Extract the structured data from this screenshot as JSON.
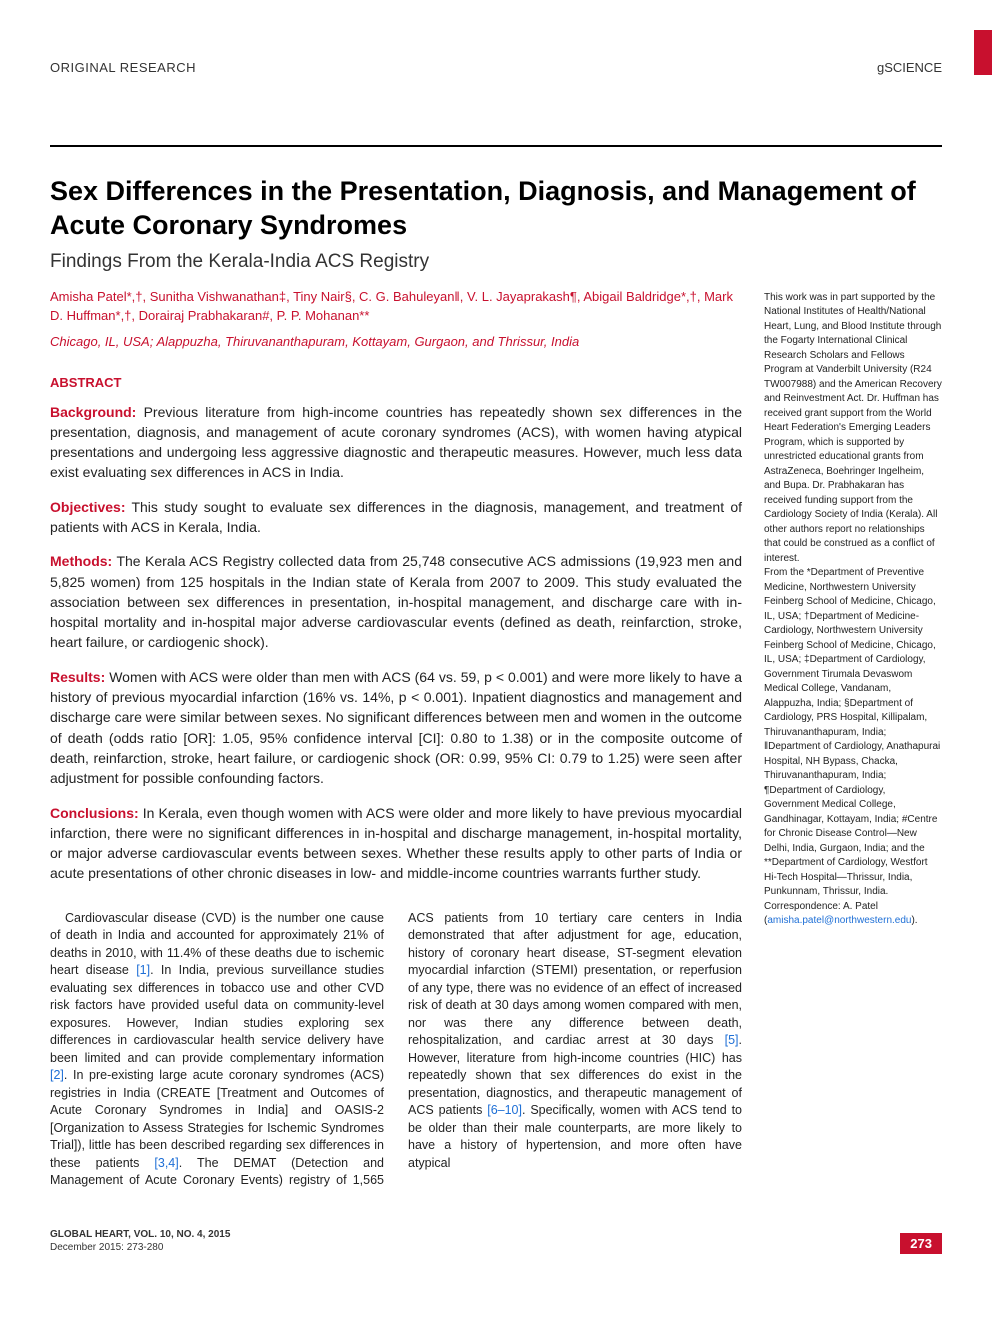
{
  "colors": {
    "accent": "#c8102e",
    "link": "#1e6fd6",
    "text": "#1a1a1a",
    "body": "#222222",
    "bg": "#ffffff"
  },
  "header": {
    "article_type": "ORIGINAL RESEARCH",
    "journal": "gSCIENCE"
  },
  "title": "Sex Differences in the Presentation, Diagnosis, and Management of Acute Coronary Syndromes",
  "subtitle": "Findings From the Kerala-India ACS Registry",
  "authors": "Amisha Patel*,†, Sunitha Vishwanathan‡, Tiny Nair§, C. G. Bahuleyan‖, V. L. Jayaprakash¶, Abigail Baldridge*,†, Mark D. Huffman*,†, Dorairaj Prabhakaran#, P. P. Mohanan**",
  "affil_line": "Chicago, IL, USA; Alappuzha, Thiruvananthapuram, Kottayam, Gurgaon, and Thrissur, India",
  "abstract": {
    "heading": "ABSTRACT",
    "sections": [
      {
        "label": "Background:",
        "text": "Previous literature from high-income countries has repeatedly shown sex differences in the presentation, diagnosis, and management of acute coronary syndromes (ACS), with women having atypical presentations and undergoing less aggressive diagnostic and therapeutic measures. However, much less data exist evaluating sex differences in ACS in India."
      },
      {
        "label": "Objectives:",
        "text": "This study sought to evaluate sex differences in the diagnosis, management, and treatment of patients with ACS in Kerala, India."
      },
      {
        "label": "Methods:",
        "text": "The Kerala ACS Registry collected data from 25,748 consecutive ACS admissions (19,923 men and 5,825 women) from 125 hospitals in the Indian state of Kerala from 2007 to 2009. This study evaluated the association between sex differences in presentation, in-hospital management, and discharge care with in-hospital mortality and in-hospital major adverse cardiovascular events (defined as death, reinfarction, stroke, heart failure, or cardiogenic shock)."
      },
      {
        "label": "Results:",
        "text": "Women with ACS were older than men with ACS (64 vs. 59, p < 0.001) and were more likely to have a history of previous myocardial infarction (16% vs. 14%, p < 0.001). Inpatient diagnostics and management and discharge care were similar between sexes. No significant differences between men and women in the outcome of death (odds ratio [OR]: 1.05, 95% confidence interval [CI]: 0.80 to 1.38) or in the composite outcome of death, reinfarction, stroke, heart failure, or cardiogenic shock (OR: 0.99, 95% CI: 0.79 to 1.25) were seen after adjustment for possible confounding factors."
      },
      {
        "label": "Conclusions:",
        "text": "In Kerala, even though women with ACS were older and more likely to have previous myocardial infarction, there were no significant differences in in-hospital and discharge management, in-hospital mortality, or major adverse cardiovascular events between sexes. Whether these results apply to other parts of India or acute presentations of other chronic diseases in low- and middle-income countries warrants further study."
      }
    ]
  },
  "body": {
    "p1a": "Cardiovascular disease (CVD) is the number one cause of death in India and accounted for approximately 21% of deaths in 2010, with 11.4% of these deaths due to ischemic heart disease ",
    "r1": "[1]",
    "p1b": ". In India, previous surveillance studies evaluating sex differences in tobacco use and other CVD risk factors have provided useful data on community-level exposures. However, Indian studies exploring sex differences in cardiovascular health service delivery have been limited and can provide complementary information ",
    "r2": "[2]",
    "p1c": ". In pre-existing large acute coronary syndromes (ACS) registries in India (CREATE [Treatment and Outcomes of Acute Coronary Syndromes in India] and OASIS-2 [Organization to Assess Strategies for Ischemic Syndromes Trial]), little has been described regarding sex differences in these patients ",
    "r3": "[3,4]",
    "p1d": ". The DEMAT (Detection and Management of Acute Coronary Events) registry of 1,565 ACS patients from 10 tertiary care centers in India demonstrated that after adjustment for age, education, history of coronary heart disease, ST-segment elevation myocardial infarction (STEMI) presentation, or reperfusion of any type, there was no evidence of an effect of increased risk of death at 30 days among women compared with men, nor was there any difference between death, rehospitalization, and cardiac arrest at 30 days ",
    "r5": "[5]",
    "p1e": ". However, literature from high-income countries (HIC) has repeatedly shown that sex differences do exist in the presentation, diagnostics, and therapeutic management of ACS patients ",
    "r6": "[6–10]",
    "p1f": ". Specifically, women with ACS tend to be older than their male counterparts, are more likely to have a history of hypertension, and more often have atypical"
  },
  "sidebar": {
    "funding": "This work was in part supported by the National Institutes of Health/National Heart, Lung, and Blood Institute through the Fogarty International Clinical Research Scholars and Fellows Program at Vanderbilt University (R24 TW007988) and the American Recovery and Reinvestment Act. Dr. Huffman has received grant support from the World Heart Federation's Emerging Leaders Program, which is supported by unrestricted educational grants from AstraZeneca, Boehringer Ingelheim, and Bupa. Dr. Prabhakaran has received funding support from the Cardiology Society of India (Kerala). All other authors report no relationships that could be construed as a conflict of interest.",
    "affiliations": "From the *Department of Preventive Medicine, Northwestern University Feinberg School of Medicine, Chicago, IL, USA; †Department of Medicine-Cardiology, Northwestern University Feinberg School of Medicine, Chicago, IL, USA; ‡Department of Cardiology, Government Tirumala Devaswom Medical College, Vandanam, Alappuzha, India; §Department of Cardiology, PRS Hospital, Killipalam, Thiruvananthapuram, India; ‖Department of Cardiology, Anathapurai Hospital, NH Bypass, Chacka, Thiruvananthapuram, India; ¶Department of Cardiology, Government Medical College, Gandhinagar, Kottayam, India; #Centre for Chronic Disease Control—New Delhi, India, Gurgaon, India; and the **Department of Cardiology, Westfort Hi-Tech Hospital—Thrissur, India, Punkunnam, Thrissur, India. Correspondence: A. Patel (",
    "email": "amisha.patel@northwestern.edu",
    "affil_close": ")."
  },
  "footer": {
    "line1": "GLOBAL HEART, VOL. 10, NO. 4, 2015",
    "line2": "December 2015: 273-280",
    "page": "273"
  }
}
